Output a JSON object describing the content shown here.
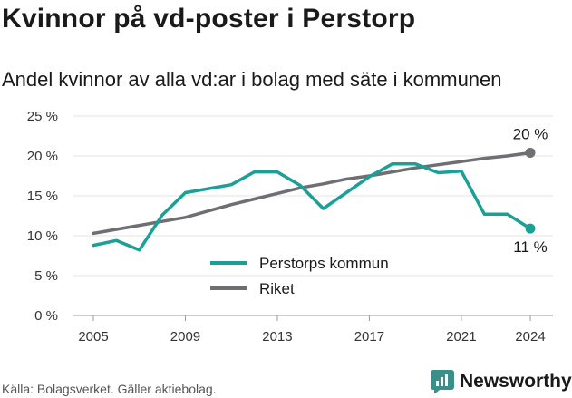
{
  "title": "Kvinnor på vd-poster i Perstorp",
  "subtitle": "Andel kvinnor av alla vd:ar i bolag med säte i kommunen",
  "source": "Källa: Bolagsverket. Gäller aktiebolag.",
  "brand": "Newsworthy",
  "colors": {
    "perstorp": "#1aa096",
    "riket": "#6f6e73",
    "grid": "#e3e3e3",
    "brand_icon": "#3a8f88"
  },
  "chart_data": {
    "type": "line",
    "x": [
      2005,
      2006,
      2007,
      2008,
      2009,
      2010,
      2011,
      2012,
      2013,
      2014,
      2015,
      2016,
      2017,
      2018,
      2019,
      2020,
      2021,
      2022,
      2023,
      2024
    ],
    "series": [
      {
        "name": "Perstorps kommun",
        "values": [
          8.8,
          9.4,
          8.2,
          12.6,
          15.4,
          15.9,
          16.4,
          18.0,
          18.0,
          16.3,
          13.4,
          15.4,
          17.4,
          19.0,
          19.0,
          17.9,
          18.1,
          12.7,
          12.7,
          10.9
        ]
      },
      {
        "name": "Riket",
        "values": [
          10.3,
          10.8,
          11.3,
          11.8,
          12.3,
          13.1,
          13.9,
          14.6,
          15.3,
          16.0,
          16.5,
          17.1,
          17.5,
          18.0,
          18.5,
          18.9,
          19.3,
          19.7,
          20.0,
          20.4
        ]
      }
    ],
    "x_ticks": [
      "2005",
      "2009",
      "2013",
      "2017",
      "2021",
      "2024"
    ],
    "y_ticks": [
      "0 %",
      "5 %",
      "10 %",
      "15 %",
      "20 %",
      "25 %"
    ],
    "ylim": [
      0,
      25
    ],
    "xlim": [
      2005,
      2024
    ],
    "end_labels": {
      "perstorp": "11 %",
      "riket": "20 %"
    },
    "grid": true,
    "legend_position": "center-bottom"
  }
}
